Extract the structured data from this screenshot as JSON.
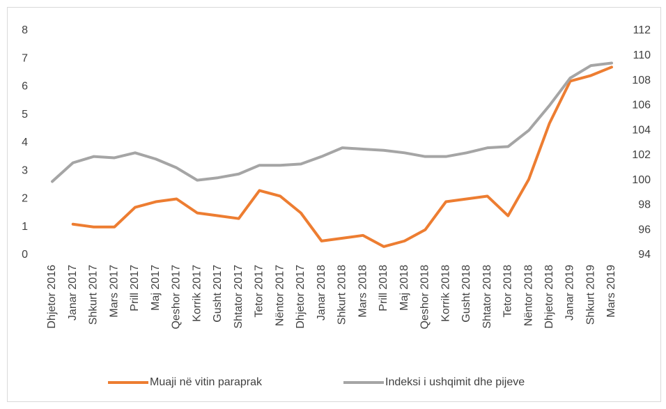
{
  "chart_data": {
    "type": "line",
    "categories": [
      "Dhjetor 2016",
      "Janar 2017",
      "Shkurt 2017",
      "Mars 2017",
      "Prill 2017",
      "Maj 2017",
      "Qeshor 2017",
      "Korrik 2017",
      "Gusht 2017",
      "Shtator 2017",
      "Tetor 2017",
      "Nëntor 2017",
      "Dhjetor 2017",
      "Janar 2018",
      "Shkurt 2018",
      "Mars 2018",
      "Prill 2018",
      "Maj 2018",
      "Qeshor 2018",
      "Korrik 2018",
      "Gusht 2018",
      "Shtator 2018",
      "Tetor 2018",
      "Nëntor 2018",
      "Dhjetor 2018",
      "Janar 2019",
      "Shkurt 2019",
      "Mars 2019"
    ],
    "series": [
      {
        "name": "Muaji në vitin paraprak",
        "color": "#ed7d31",
        "values": [
          null,
          1.1,
          1.0,
          1.0,
          1.7,
          1.9,
          2.0,
          1.5,
          1.4,
          1.3,
          2.3,
          2.1,
          1.5,
          0.5,
          0.6,
          0.7,
          0.3,
          0.5,
          0.9,
          1.9,
          2.0,
          2.1,
          1.4,
          2.7,
          4.7,
          6.2,
          6.4,
          6.7
        ]
      },
      {
        "name": "Indeksi i ushqimit dhe pijeve",
        "color": "#a5a5a5",
        "axis": "y2",
        "values": [
          99.9,
          101.4,
          101.9,
          101.8,
          102.2,
          101.7,
          101.0,
          100.0,
          100.2,
          100.5,
          101.2,
          101.2,
          101.3,
          101.9,
          102.6,
          102.5,
          102.4,
          102.2,
          101.9,
          101.9,
          102.2,
          102.6,
          102.7,
          104.0,
          106.0,
          108.2,
          109.2,
          109.4
        ]
      }
    ],
    "ylim": [
      0,
      8
    ],
    "yticks": [
      0,
      1,
      2,
      3,
      4,
      5,
      6,
      7,
      8
    ],
    "y2lim": [
      94,
      112
    ],
    "y2ticks": [
      94,
      96,
      98,
      100,
      102,
      104,
      106,
      108,
      110,
      112
    ],
    "legend": "bottom",
    "grid": false
  }
}
